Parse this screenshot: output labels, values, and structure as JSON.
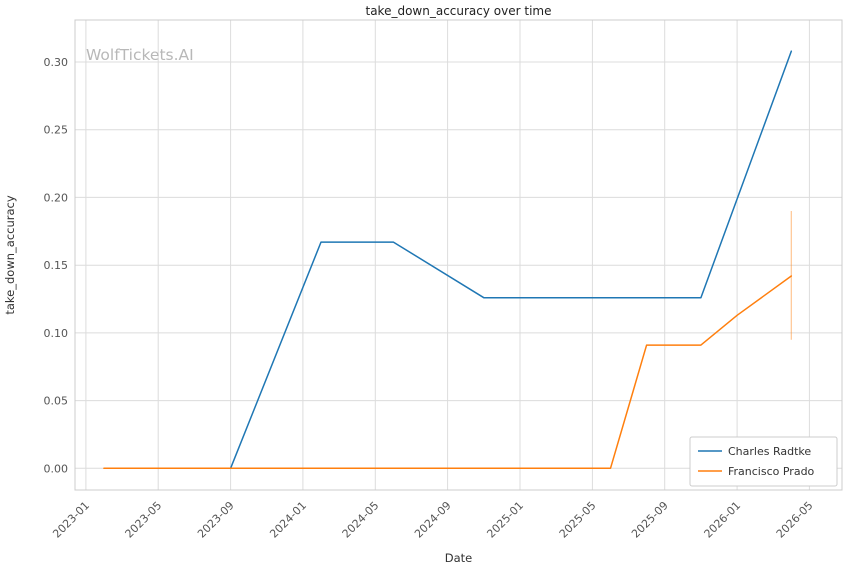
{
  "figure": {
    "watermark": "WolfTickets.AI"
  },
  "chart_data": {
    "type": "line",
    "title": "take_down_accuracy over time",
    "xlabel": "Date",
    "ylabel": "take_down_accuracy",
    "x_tick_labels": [
      "2023-01",
      "2023-05",
      "2023-09",
      "2024-01",
      "2024-05",
      "2024-09",
      "2025-01",
      "2025-05",
      "2025-09",
      "2026-01",
      "2026-05"
    ],
    "y_tick_labels": [
      "0.00",
      "0.05",
      "0.10",
      "0.15",
      "0.20",
      "0.25",
      "0.30"
    ],
    "y_ticks": [
      0,
      0.05,
      0.1,
      0.15,
      0.2,
      0.25,
      0.3
    ],
    "ylim": [
      -0.016,
      0.331
    ],
    "xlim_months": [
      -0.6,
      41.8
    ],
    "grid": true,
    "legend": {
      "position": "lower-right",
      "entries": [
        "Charles Radtke",
        "Francisco Prado"
      ]
    },
    "series": [
      {
        "name": "Charles Radtke",
        "color": "#1f77b4",
        "points": [
          {
            "date": "2023-09",
            "value": 0.0
          },
          {
            "date": "2024-02",
            "value": 0.167
          },
          {
            "date": "2024-06",
            "value": 0.167
          },
          {
            "date": "2024-11",
            "value": 0.126
          },
          {
            "date": "2025-11",
            "value": 0.126
          },
          {
            "date": "2026-04",
            "value": 0.308
          }
        ]
      },
      {
        "name": "Francisco Prado",
        "color": "#ff7f0e",
        "points": [
          {
            "date": "2023-02",
            "value": 0.0
          },
          {
            "date": "2025-06",
            "value": 0.0
          },
          {
            "date": "2025-08",
            "value": 0.091
          },
          {
            "date": "2025-11",
            "value": 0.091
          },
          {
            "date": "2026-01",
            "value": 0.113
          },
          {
            "date": "2026-04",
            "value": 0.142
          }
        ],
        "error_bar": {
          "date": "2026-04",
          "low": 0.095,
          "high": 0.19
        }
      }
    ],
    "colors": {
      "grid": "#dcdcdc",
      "spine": "#cccccc",
      "tick_text": "#555555",
      "title_text": "#222222",
      "axis_label_text": "#333333",
      "watermark": "#b8b8b8",
      "legend_border": "#cccccc"
    }
  }
}
